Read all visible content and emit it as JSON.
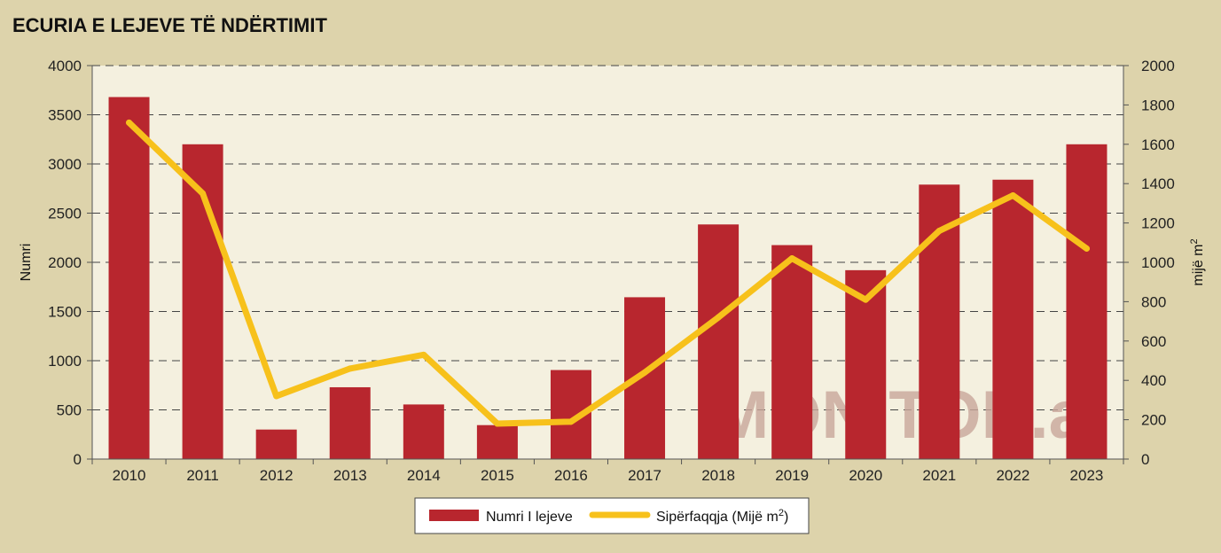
{
  "chart_data": {
    "type": "bar+line",
    "title": "ECURIA E LEJEVE TË NDËRTIMIT",
    "categories": [
      "2010",
      "2011",
      "2012",
      "2013",
      "2014",
      "2015",
      "2016",
      "2017",
      "2018",
      "2019",
      "2020",
      "2021",
      "2022",
      "2023"
    ],
    "series": [
      {
        "name": "Numri I lejeve",
        "type": "bar",
        "axis": "left",
        "color": "#b8262e",
        "values": [
          3680,
          3200,
          300,
          730,
          555,
          345,
          905,
          1645,
          2385,
          2175,
          1920,
          2790,
          2840,
          3200
        ]
      },
      {
        "name": "Sipërfaqqja (Mijë m²)",
        "name_base": "Sipërfaqqja (Mijë m",
        "name_sup": "2",
        "name_tail": ")",
        "type": "line",
        "axis": "right",
        "color": "#f7c11b",
        "values": [
          1710,
          1350,
          320,
          460,
          530,
          180,
          190,
          440,
          720,
          1020,
          810,
          1160,
          1340,
          1070
        ]
      }
    ],
    "ylabel": "Numri",
    "ylabel_right": "mijë m",
    "ylabel_right_sup": "2",
    "ylim": [
      0,
      4000
    ],
    "yticks": [
      0,
      500,
      1000,
      1500,
      2000,
      2500,
      3000,
      3500,
      4000
    ],
    "ylim_right": [
      0,
      2000
    ],
    "yticks_right": [
      0,
      200,
      400,
      600,
      800,
      1000,
      1200,
      1400,
      1600,
      1800,
      2000
    ],
    "grid": true,
    "legend": "bottom-center",
    "watermark": "MONITOR.al"
  }
}
